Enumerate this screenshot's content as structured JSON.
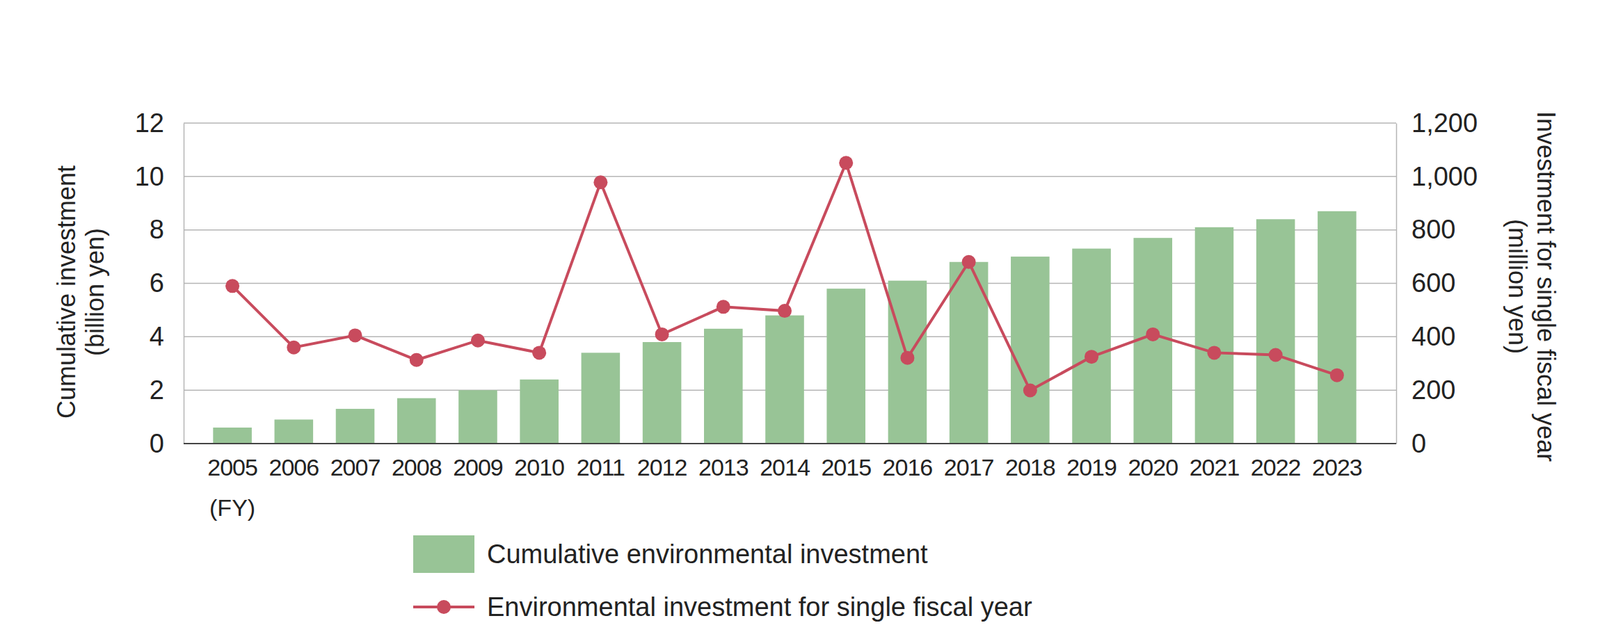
{
  "chart_data": {
    "type": "bar",
    "categories": [
      "2005",
      "2006",
      "2007",
      "2008",
      "2009",
      "2010",
      "2011",
      "2012",
      "2013",
      "2014",
      "2015",
      "2016",
      "2017",
      "2018",
      "2019",
      "2020",
      "2021",
      "2022",
      "2023"
    ],
    "xlabel": "(FY)",
    "ylabel": [
      "Cumulative investment",
      "(billion yen)"
    ],
    "y2label": [
      "Investment for single fiscal year",
      "(million yen)"
    ],
    "ylim": [
      0,
      12
    ],
    "yticks": [
      0,
      2,
      4,
      6,
      8,
      10,
      12
    ],
    "y2lim": [
      0,
      1200
    ],
    "y2ticks": [
      0,
      200,
      400,
      600,
      800,
      {
        "value": 1000,
        "label": "1,000"
      },
      {
        "value": 1200,
        "label": "1,200"
      }
    ],
    "grid": true,
    "legend": "bottom",
    "series": [
      {
        "name": "Cumulative environmental investment",
        "type": "bar",
        "color": "#98c496",
        "values": [
          0.6,
          0.9,
          1.3,
          1.7,
          2.0,
          2.4,
          3.4,
          3.8,
          4.3,
          4.8,
          5.8,
          6.1,
          6.8,
          7.0,
          7.3,
          7.7,
          8.1,
          8.4,
          8.7
        ]
      },
      {
        "name": "Environmental investment for single fiscal year",
        "type": "line",
        "axis": "y2",
        "color": "#c84b5d",
        "marker": "circle",
        "values": [
          590,
          360,
          405,
          313,
          386,
          340,
          978,
          409,
          512,
          497,
          1051,
          321,
          680,
          199,
          325,
          409,
          340,
          332,
          256
        ]
      }
    ]
  }
}
